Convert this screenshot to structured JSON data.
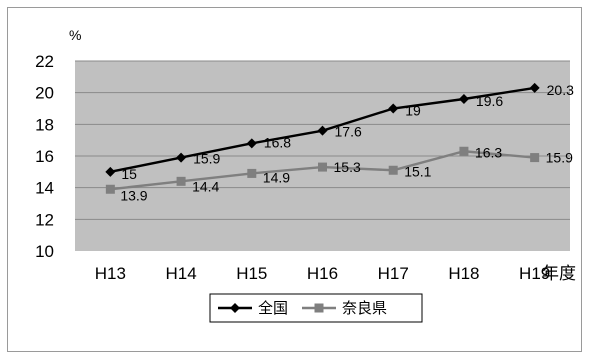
{
  "chart_data": {
    "type": "line",
    "title": "",
    "x_unit_label": "年度",
    "y_unit_label": "%",
    "categories": [
      "H13",
      "H14",
      "H15",
      "H16",
      "H17",
      "H18",
      "H19"
    ],
    "ylim": [
      10,
      22
    ],
    "yticks": [
      10,
      12,
      14,
      16,
      18,
      20,
      22
    ],
    "grid": true,
    "legend_position": "bottom",
    "plot_background": "#c0c0c0",
    "series": [
      {
        "name": "全国",
        "marker": "diamond",
        "color": "#000000",
        "values": [
          15,
          15.9,
          16.8,
          17.6,
          19,
          19.6,
          20.3
        ]
      },
      {
        "name": "奈良県",
        "marker": "square",
        "color": "#7f7f7f",
        "values": [
          13.9,
          14.4,
          14.9,
          15.3,
          15.1,
          16.3,
          15.9
        ]
      }
    ]
  }
}
